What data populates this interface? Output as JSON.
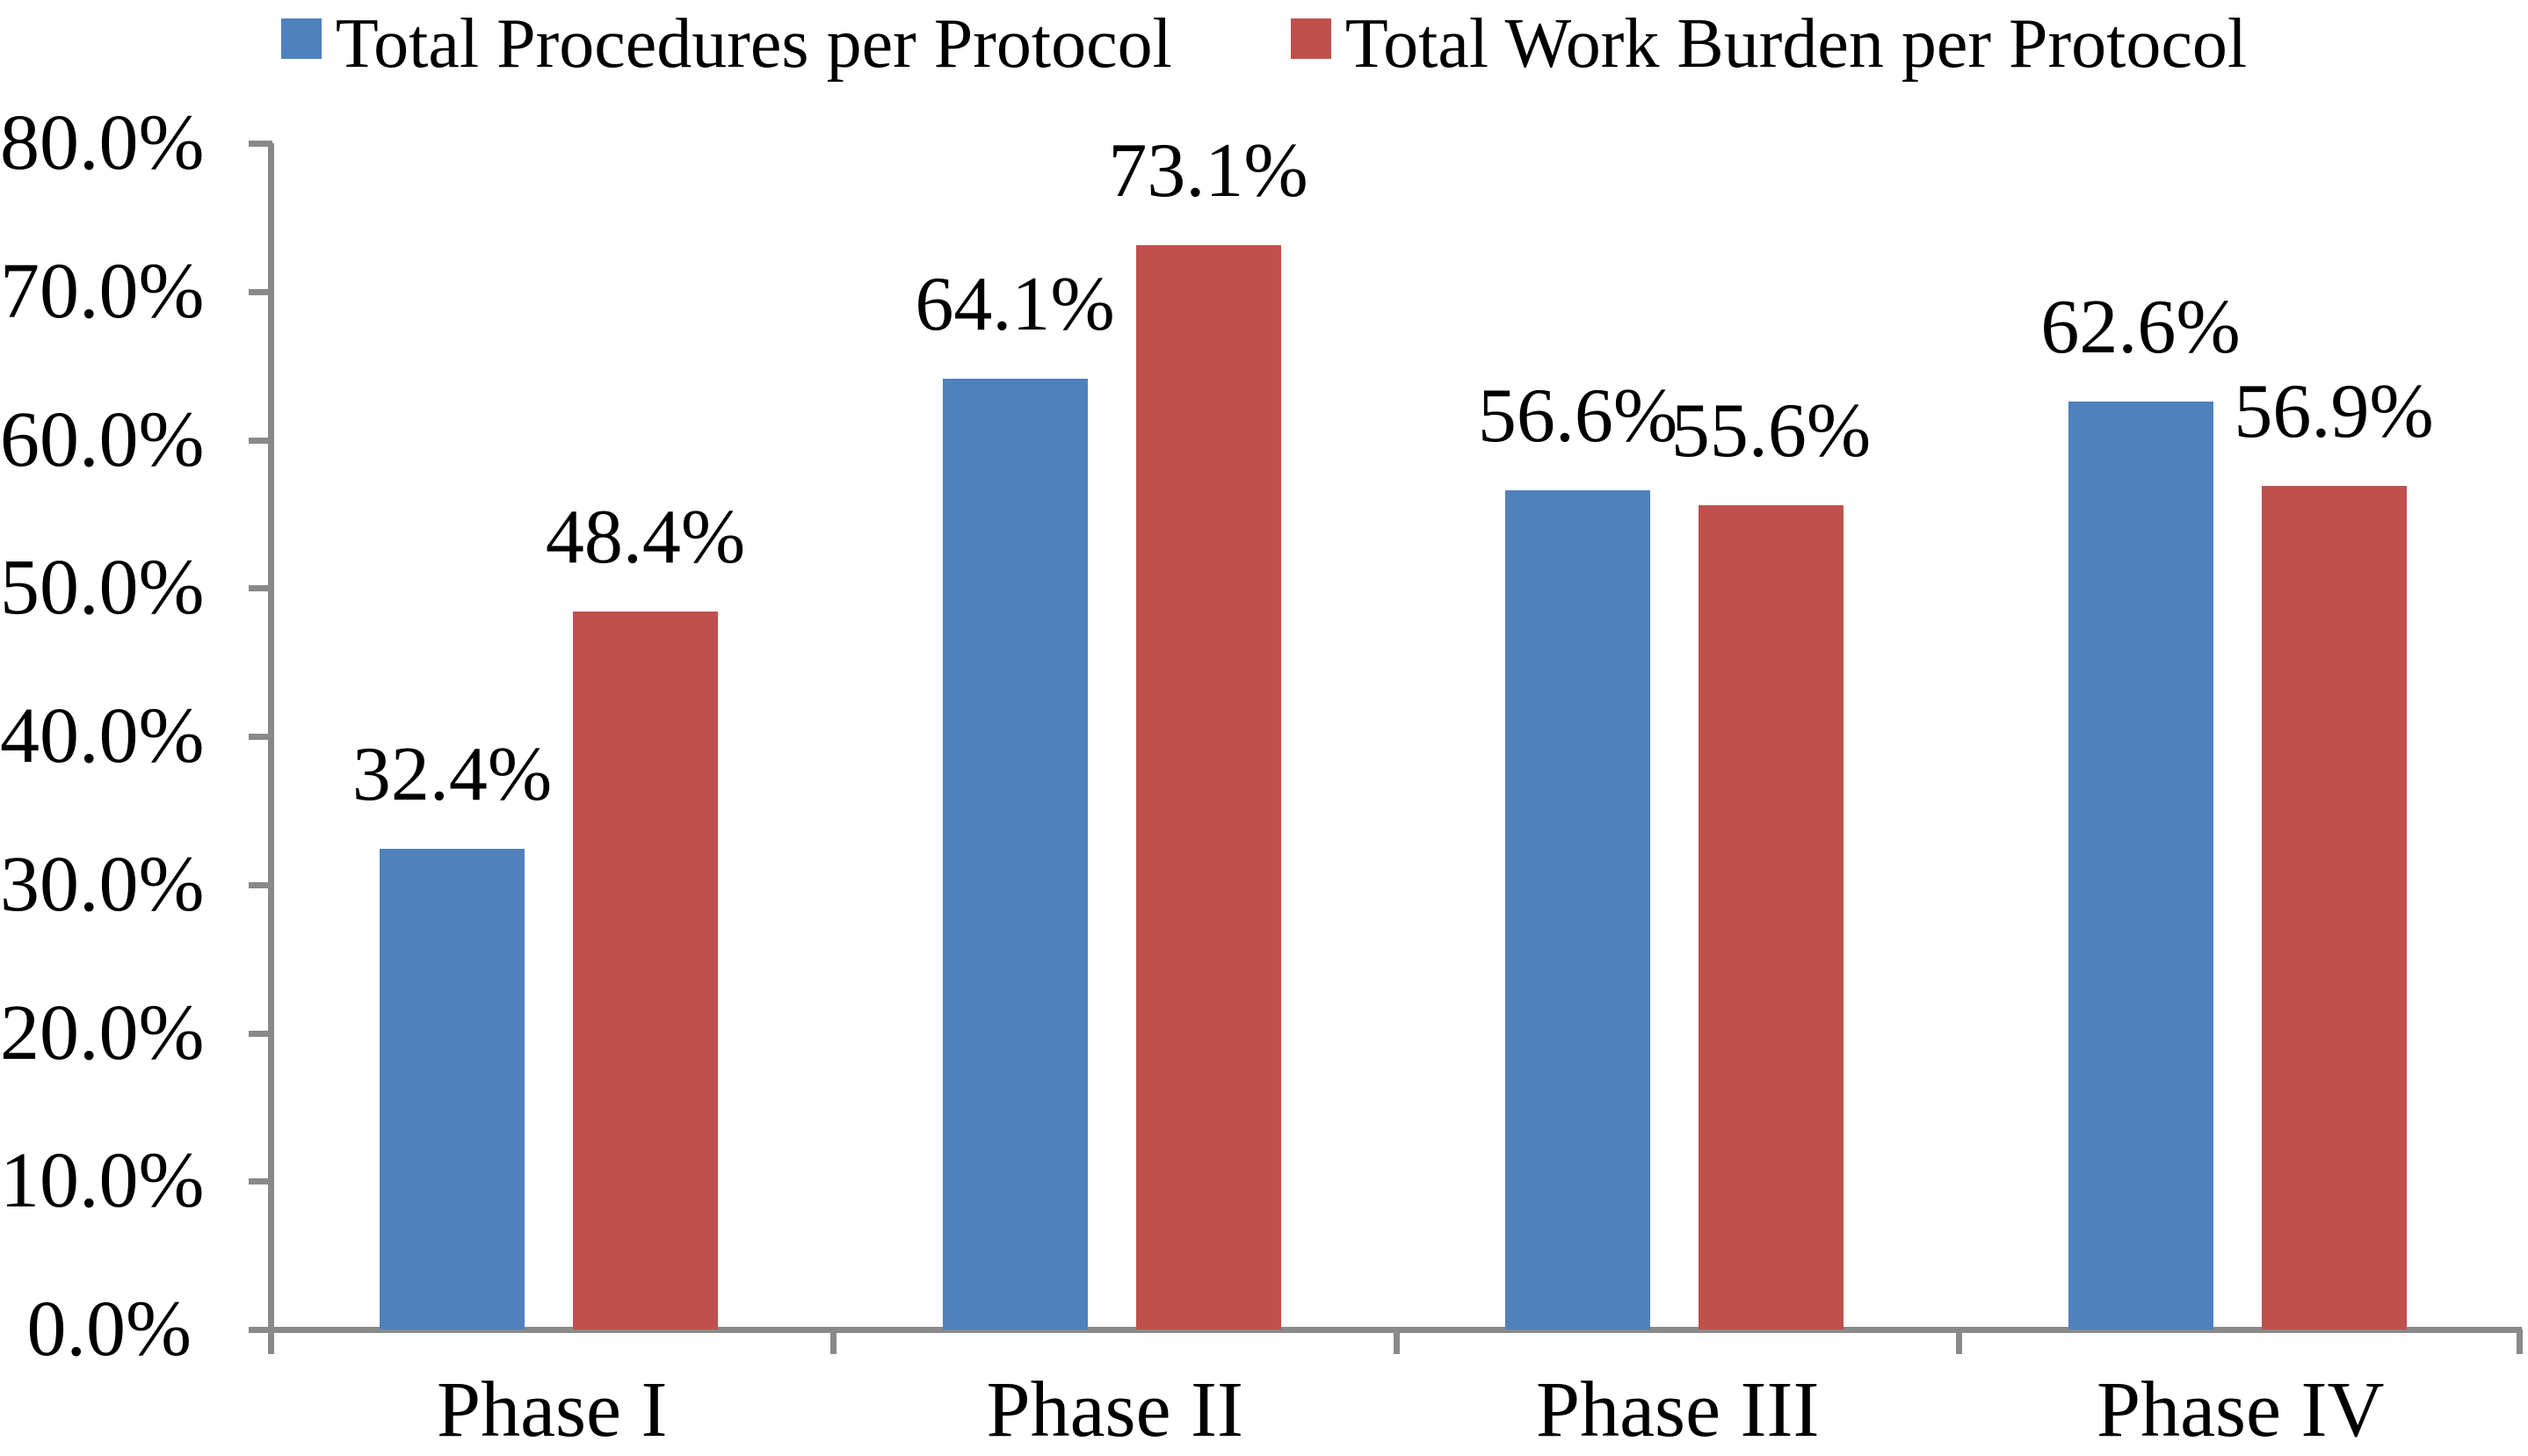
{
  "chart_data": {
    "type": "bar",
    "title": "",
    "categories": [
      "Phase I",
      "Phase II",
      "Phase III",
      "Phase IV"
    ],
    "series": [
      {
        "name": "Total Procedures per Protocol",
        "color": "#4F81BD",
        "values": [
          32.4,
          64.1,
          56.6,
          62.6
        ],
        "data_labels": [
          "32.4%",
          "64.1%",
          "56.6%",
          "62.6%"
        ]
      },
      {
        "name": "Total Work Burden per Protocol",
        "color": "#C0504D",
        "values": [
          48.4,
          73.1,
          55.6,
          56.9
        ],
        "data_labels": [
          "48.4%",
          "73.1%",
          "55.6%",
          "56.9%"
        ]
      }
    ],
    "y_axis": {
      "min": 0,
      "max": 80,
      "step": 10,
      "tick_labels": [
        "0.0%",
        "10.0%",
        "20.0%",
        "30.0%",
        "40.0%",
        "50.0%",
        "60.0%",
        "70.0%",
        "80.0%"
      ],
      "format": "percent"
    },
    "x_axis": {
      "label": ""
    },
    "legend_position": "top",
    "grid": false,
    "axis_color": "#898989",
    "background_color": "#FFFFFF"
  }
}
